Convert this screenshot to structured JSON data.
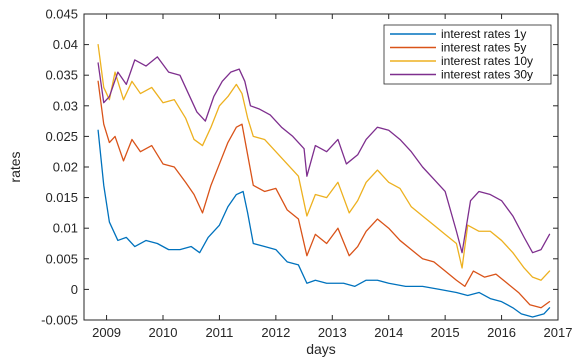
{
  "chart_data": {
    "type": "line",
    "title": "",
    "xlabel": "days",
    "ylabel": "rates",
    "xlim": [
      2008.6,
      2017.0
    ],
    "ylim": [
      -0.005,
      0.045
    ],
    "xticks": [
      2009,
      2010,
      2011,
      2012,
      2013,
      2014,
      2015,
      2016,
      2017
    ],
    "xtick_labels": [
      "2009",
      "2010",
      "2011",
      "2012",
      "2013",
      "2014",
      "2015",
      "2016",
      "2017"
    ],
    "yticks": [
      -0.005,
      0,
      0.005,
      0.01,
      0.015,
      0.02,
      0.025,
      0.03,
      0.035,
      0.04,
      0.045
    ],
    "ytick_labels": [
      "-0.005",
      "0",
      "0.005",
      "0.01",
      "0.015",
      "0.02",
      "0.025",
      "0.03",
      "0.035",
      "0.04",
      "0.045"
    ],
    "grid": false,
    "legend_position": "top-right",
    "series": [
      {
        "name": "interest rates 1y",
        "color": "#0072BD",
        "points": [
          [
            2008.85,
            0.026
          ],
          [
            2008.95,
            0.017
          ],
          [
            2009.05,
            0.011
          ],
          [
            2009.2,
            0.008
          ],
          [
            2009.35,
            0.0085
          ],
          [
            2009.5,
            0.007
          ],
          [
            2009.7,
            0.008
          ],
          [
            2009.9,
            0.0075
          ],
          [
            2010.1,
            0.0065
          ],
          [
            2010.3,
            0.0065
          ],
          [
            2010.5,
            0.007
          ],
          [
            2010.65,
            0.006
          ],
          [
            2010.8,
            0.0085
          ],
          [
            2011.0,
            0.0105
          ],
          [
            2011.15,
            0.0135
          ],
          [
            2011.3,
            0.0155
          ],
          [
            2011.42,
            0.016
          ],
          [
            2011.5,
            0.0125
          ],
          [
            2011.6,
            0.0075
          ],
          [
            2011.8,
            0.007
          ],
          [
            2012.0,
            0.0065
          ],
          [
            2012.2,
            0.0045
          ],
          [
            2012.4,
            0.004
          ],
          [
            2012.55,
            0.001
          ],
          [
            2012.7,
            0.0015
          ],
          [
            2012.9,
            0.001
          ],
          [
            2013.2,
            0.001
          ],
          [
            2013.4,
            0.0005
          ],
          [
            2013.6,
            0.0015
          ],
          [
            2013.8,
            0.0015
          ],
          [
            2014.0,
            0.001
          ],
          [
            2014.3,
            0.0005
          ],
          [
            2014.6,
            0.0005
          ],
          [
            2014.9,
            0.0
          ],
          [
            2015.2,
            -0.0005
          ],
          [
            2015.4,
            -0.001
          ],
          [
            2015.6,
            -0.0005
          ],
          [
            2015.8,
            -0.0015
          ],
          [
            2016.0,
            -0.002
          ],
          [
            2016.2,
            -0.003
          ],
          [
            2016.35,
            -0.004
          ],
          [
            2016.55,
            -0.0045
          ],
          [
            2016.75,
            -0.004
          ],
          [
            2016.85,
            -0.003
          ]
        ]
      },
      {
        "name": "interest rates 5y",
        "color": "#D95319",
        "points": [
          [
            2008.85,
            0.034
          ],
          [
            2008.95,
            0.027
          ],
          [
            2009.05,
            0.024
          ],
          [
            2009.15,
            0.025
          ],
          [
            2009.3,
            0.021
          ],
          [
            2009.45,
            0.0245
          ],
          [
            2009.6,
            0.0225
          ],
          [
            2009.8,
            0.0235
          ],
          [
            2010.0,
            0.0205
          ],
          [
            2010.2,
            0.02
          ],
          [
            2010.4,
            0.0175
          ],
          [
            2010.55,
            0.0155
          ],
          [
            2010.7,
            0.0125
          ],
          [
            2010.85,
            0.017
          ],
          [
            2011.0,
            0.0205
          ],
          [
            2011.15,
            0.024
          ],
          [
            2011.3,
            0.0265
          ],
          [
            2011.4,
            0.027
          ],
          [
            2011.5,
            0.022
          ],
          [
            2011.6,
            0.017
          ],
          [
            2011.8,
            0.016
          ],
          [
            2012.0,
            0.0165
          ],
          [
            2012.2,
            0.013
          ],
          [
            2012.4,
            0.0115
          ],
          [
            2012.55,
            0.0055
          ],
          [
            2012.7,
            0.009
          ],
          [
            2012.9,
            0.0075
          ],
          [
            2013.1,
            0.01
          ],
          [
            2013.3,
            0.0055
          ],
          [
            2013.45,
            0.007
          ],
          [
            2013.6,
            0.0095
          ],
          [
            2013.8,
            0.0115
          ],
          [
            2014.0,
            0.01
          ],
          [
            2014.2,
            0.008
          ],
          [
            2014.4,
            0.0065
          ],
          [
            2014.6,
            0.005
          ],
          [
            2014.8,
            0.0045
          ],
          [
            2015.0,
            0.003
          ],
          [
            2015.2,
            0.0015
          ],
          [
            2015.35,
            0.0005
          ],
          [
            2015.5,
            0.003
          ],
          [
            2015.7,
            0.002
          ],
          [
            2015.9,
            0.0025
          ],
          [
            2016.1,
            0.001
          ],
          [
            2016.3,
            -0.0005
          ],
          [
            2016.5,
            -0.0025
          ],
          [
            2016.7,
            -0.003
          ],
          [
            2016.85,
            -0.002
          ]
        ]
      },
      {
        "name": "interest rates 10y",
        "color": "#EDB120",
        "points": [
          [
            2008.85,
            0.04
          ],
          [
            2008.95,
            0.033
          ],
          [
            2009.05,
            0.031
          ],
          [
            2009.15,
            0.0355
          ],
          [
            2009.3,
            0.031
          ],
          [
            2009.45,
            0.034
          ],
          [
            2009.6,
            0.032
          ],
          [
            2009.8,
            0.033
          ],
          [
            2010.0,
            0.0305
          ],
          [
            2010.2,
            0.031
          ],
          [
            2010.4,
            0.028
          ],
          [
            2010.55,
            0.0245
          ],
          [
            2010.7,
            0.0235
          ],
          [
            2010.85,
            0.0265
          ],
          [
            2011.0,
            0.03
          ],
          [
            2011.15,
            0.0315
          ],
          [
            2011.3,
            0.0335
          ],
          [
            2011.4,
            0.032
          ],
          [
            2011.5,
            0.028
          ],
          [
            2011.6,
            0.025
          ],
          [
            2011.8,
            0.0245
          ],
          [
            2012.0,
            0.0225
          ],
          [
            2012.2,
            0.0205
          ],
          [
            2012.4,
            0.0185
          ],
          [
            2012.55,
            0.012
          ],
          [
            2012.7,
            0.0155
          ],
          [
            2012.9,
            0.015
          ],
          [
            2013.1,
            0.0175
          ],
          [
            2013.3,
            0.0125
          ],
          [
            2013.45,
            0.0145
          ],
          [
            2013.6,
            0.0175
          ],
          [
            2013.8,
            0.0195
          ],
          [
            2014.0,
            0.0175
          ],
          [
            2014.2,
            0.0165
          ],
          [
            2014.4,
            0.0135
          ],
          [
            2014.6,
            0.012
          ],
          [
            2014.8,
            0.0105
          ],
          [
            2015.0,
            0.009
          ],
          [
            2015.2,
            0.0075
          ],
          [
            2015.3,
            0.0035
          ],
          [
            2015.4,
            0.0105
          ],
          [
            2015.6,
            0.0095
          ],
          [
            2015.8,
            0.0095
          ],
          [
            2016.0,
            0.008
          ],
          [
            2016.2,
            0.006
          ],
          [
            2016.4,
            0.0035
          ],
          [
            2016.55,
            0.002
          ],
          [
            2016.7,
            0.0015
          ],
          [
            2016.85,
            0.003
          ]
        ]
      },
      {
        "name": "interest rates 30y",
        "color": "#7E2F8E",
        "points": [
          [
            2008.85,
            0.037
          ],
          [
            2008.95,
            0.0305
          ],
          [
            2009.05,
            0.0315
          ],
          [
            2009.2,
            0.0355
          ],
          [
            2009.35,
            0.0335
          ],
          [
            2009.5,
            0.0375
          ],
          [
            2009.7,
            0.0365
          ],
          [
            2009.9,
            0.038
          ],
          [
            2010.1,
            0.0355
          ],
          [
            2010.3,
            0.035
          ],
          [
            2010.45,
            0.032
          ],
          [
            2010.6,
            0.029
          ],
          [
            2010.75,
            0.0275
          ],
          [
            2010.9,
            0.0315
          ],
          [
            2011.05,
            0.034
          ],
          [
            2011.2,
            0.0355
          ],
          [
            2011.35,
            0.036
          ],
          [
            2011.45,
            0.034
          ],
          [
            2011.55,
            0.03
          ],
          [
            2011.7,
            0.0295
          ],
          [
            2011.9,
            0.0285
          ],
          [
            2012.1,
            0.0265
          ],
          [
            2012.3,
            0.025
          ],
          [
            2012.5,
            0.023
          ],
          [
            2012.55,
            0.0185
          ],
          [
            2012.7,
            0.0235
          ],
          [
            2012.9,
            0.0225
          ],
          [
            2013.1,
            0.0245
          ],
          [
            2013.25,
            0.0205
          ],
          [
            2013.45,
            0.022
          ],
          [
            2013.6,
            0.0245
          ],
          [
            2013.8,
            0.0265
          ],
          [
            2014.0,
            0.026
          ],
          [
            2014.2,
            0.0245
          ],
          [
            2014.4,
            0.0225
          ],
          [
            2014.6,
            0.02
          ],
          [
            2014.8,
            0.018
          ],
          [
            2015.0,
            0.016
          ],
          [
            2015.2,
            0.0095
          ],
          [
            2015.3,
            0.006
          ],
          [
            2015.45,
            0.0145
          ],
          [
            2015.6,
            0.016
          ],
          [
            2015.8,
            0.0155
          ],
          [
            2016.0,
            0.0145
          ],
          [
            2016.2,
            0.012
          ],
          [
            2016.4,
            0.0085
          ],
          [
            2016.55,
            0.006
          ],
          [
            2016.7,
            0.0065
          ],
          [
            2016.85,
            0.009
          ]
        ]
      }
    ]
  }
}
